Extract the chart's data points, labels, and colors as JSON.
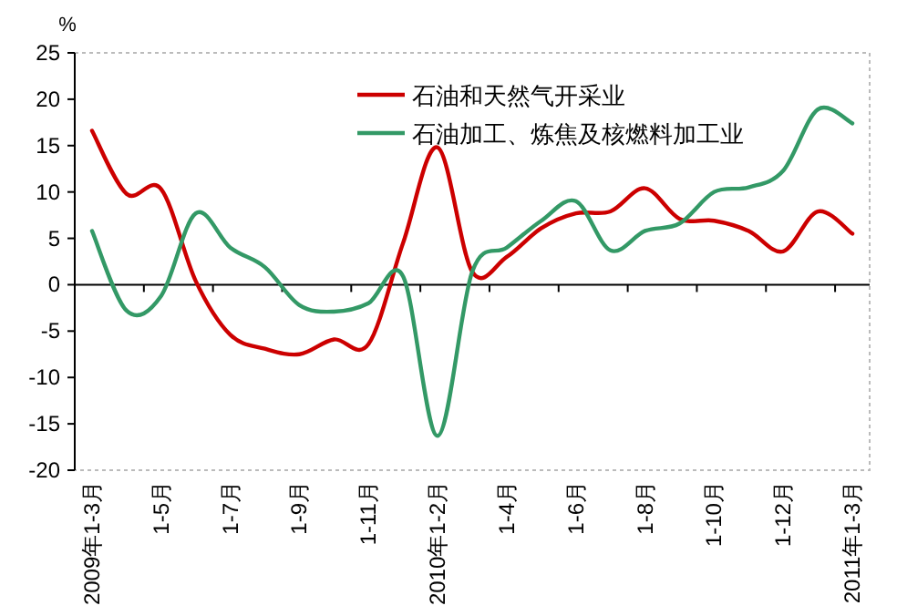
{
  "chart_data": {
    "type": "line",
    "ylabel": "%",
    "ylim": [
      -20,
      25
    ],
    "yticks": [
      -20,
      -15,
      -10,
      -5,
      0,
      5,
      10,
      15,
      20,
      25
    ],
    "legend": "top",
    "categories": [
      "2009年1-3月",
      null,
      "1-5月",
      null,
      "1-7月",
      null,
      "1-9月",
      null,
      "1-11月",
      null,
      "2010年1-2月",
      null,
      "1-4月",
      null,
      "1-6月",
      null,
      "1-8月",
      null,
      "1-10月",
      null,
      "1-12月",
      null,
      "2011年1-3月"
    ],
    "series": [
      {
        "name": "石油和天然气开采业",
        "color": "#cc0000",
        "values": [
          16.6,
          9.8,
          10.3,
          0.4,
          -5.4,
          -6.9,
          -7.5,
          -5.9,
          -6.4,
          4.5,
          14.8,
          1.4,
          3.0,
          6.1,
          7.7,
          7.9,
          10.4,
          7.1,
          6.9,
          5.8,
          3.6,
          7.9,
          5.5
        ]
      },
      {
        "name": "石油加工、炼焦及核燃料加工业",
        "color": "#339966",
        "values": [
          5.8,
          -2.8,
          -1.2,
          7.7,
          4.0,
          1.9,
          -2.2,
          -2.9,
          -2.0,
          0.9,
          -16.3,
          1.4,
          4.0,
          6.9,
          9.0,
          3.7,
          5.8,
          6.6,
          10.0,
          10.5,
          12.3,
          18.9,
          17.4
        ]
      }
    ]
  }
}
